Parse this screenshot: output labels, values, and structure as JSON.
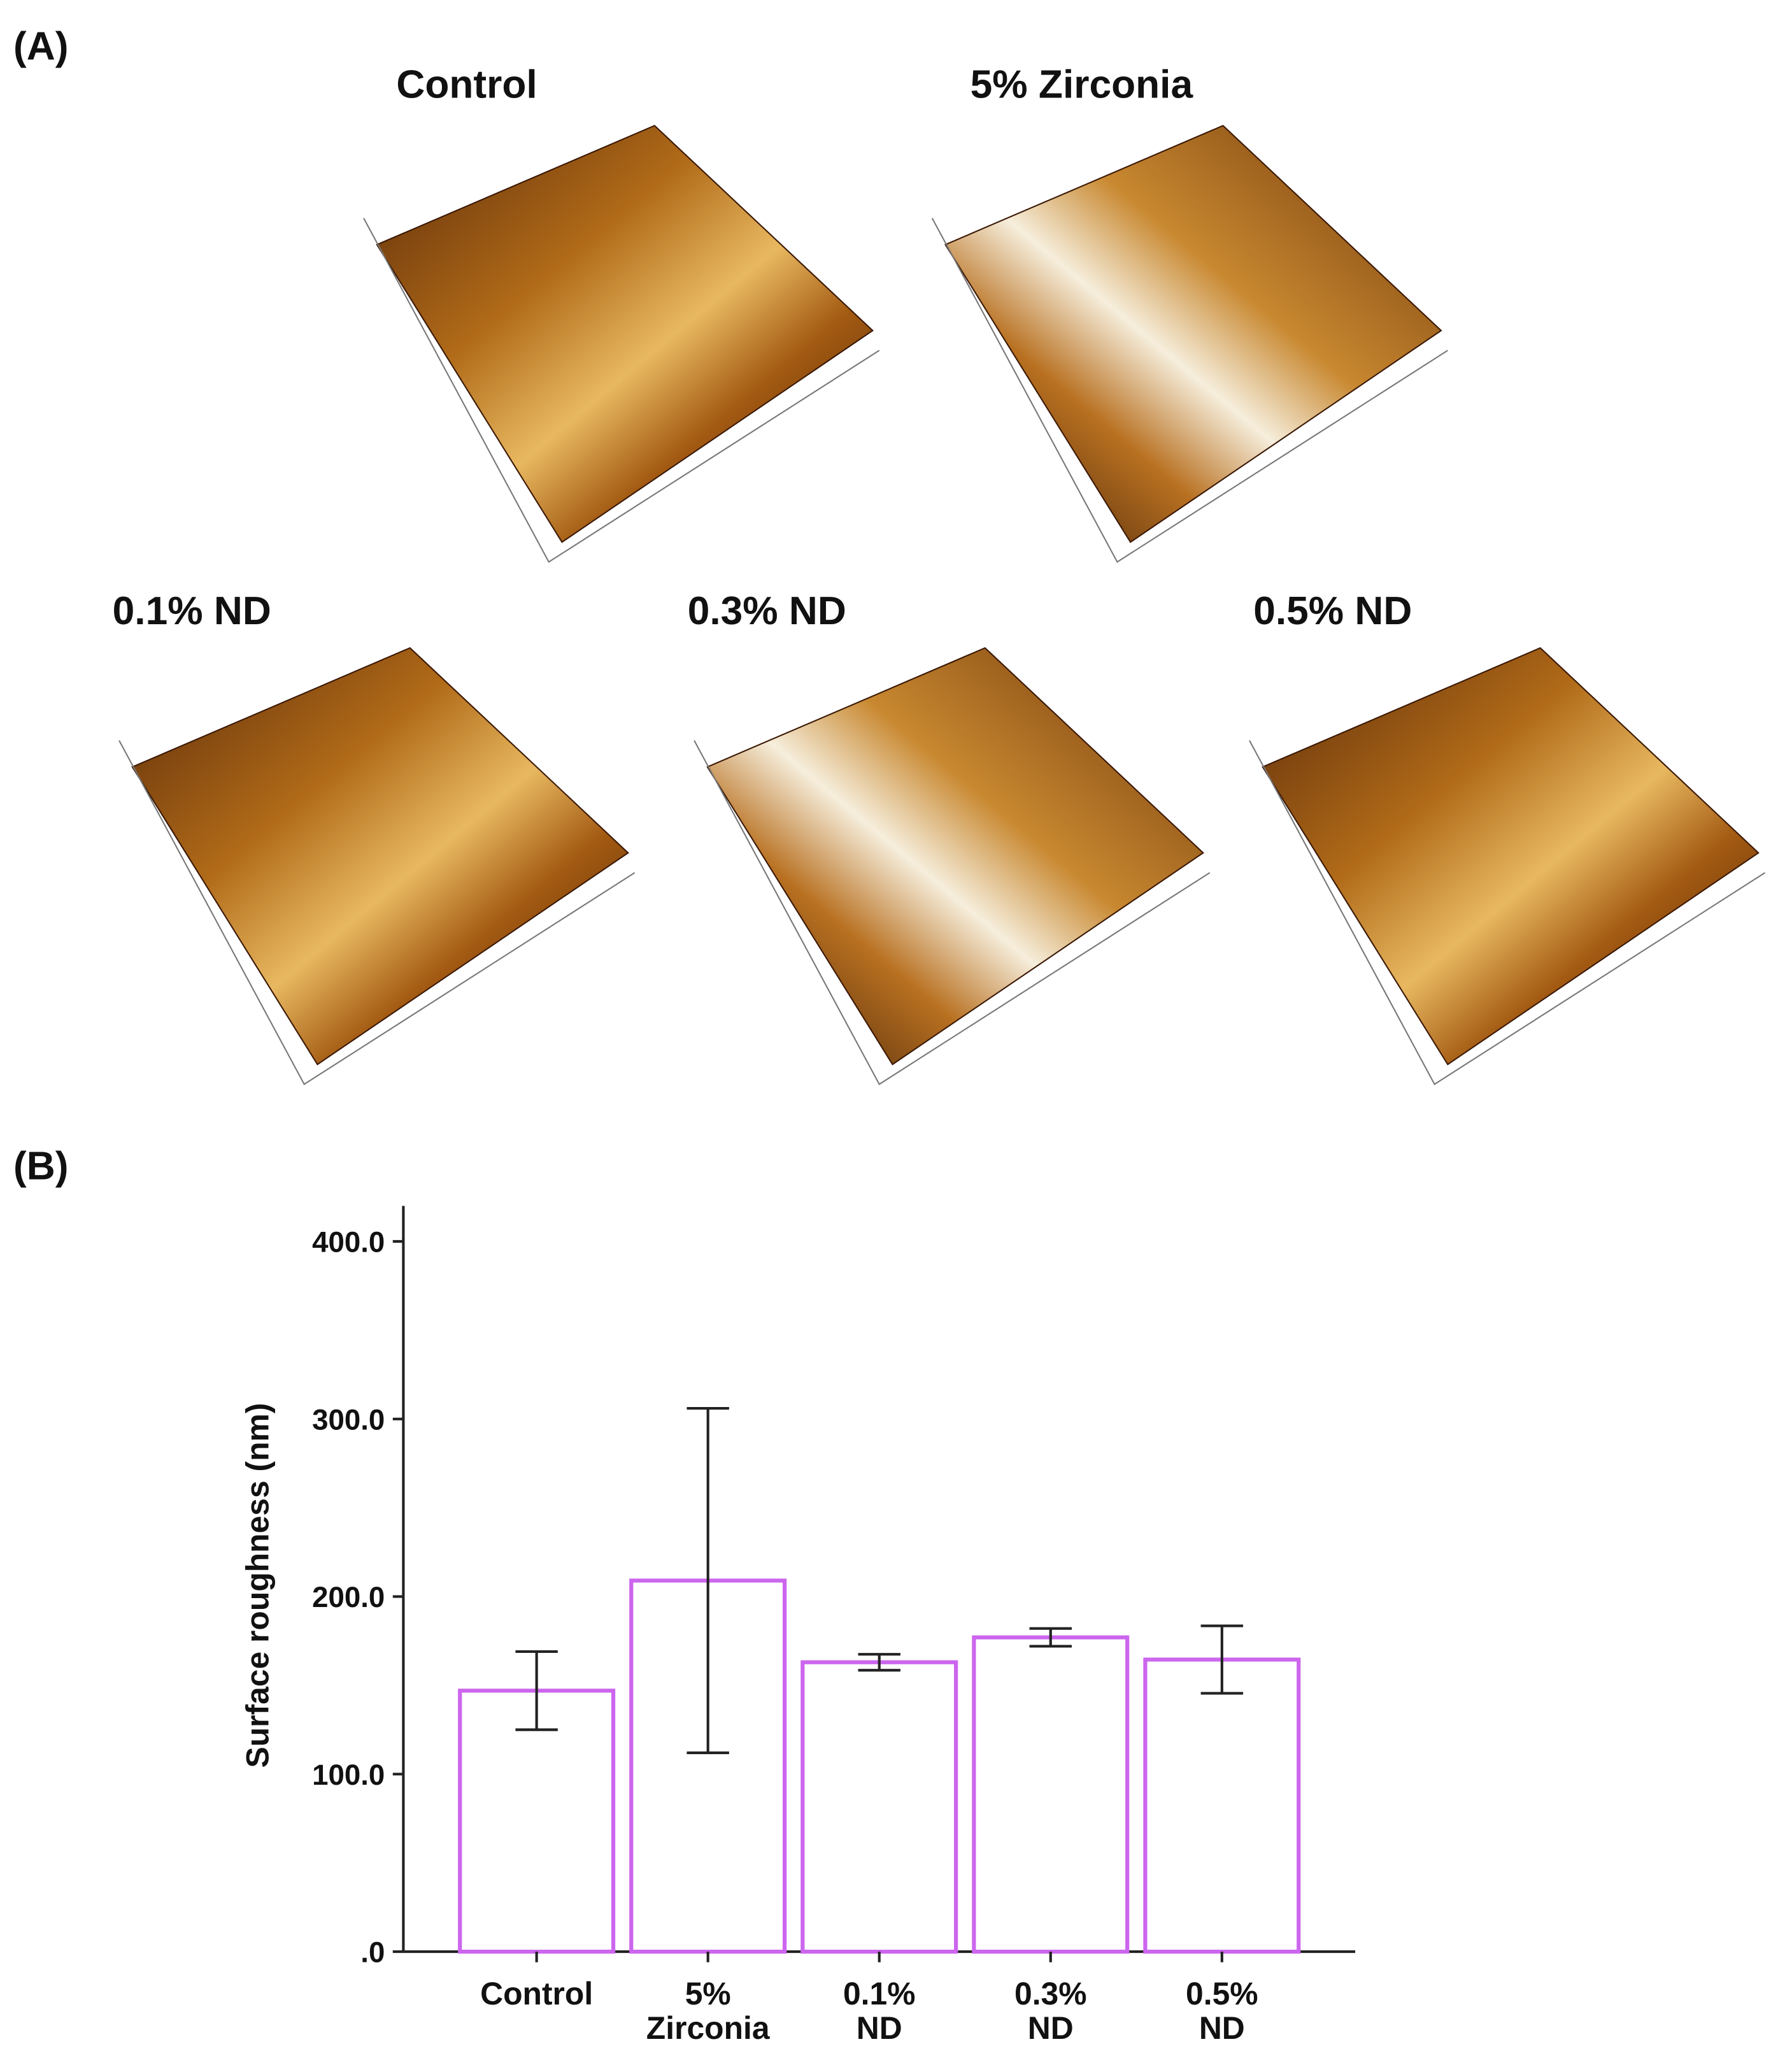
{
  "panel_a": {
    "label": "(A)",
    "images": [
      {
        "title": "Control"
      },
      {
        "title": "5% Zirconia"
      },
      {
        "title": "0.1% ND"
      },
      {
        "title": "0.3% ND"
      },
      {
        "title": "0.5% ND"
      }
    ]
  },
  "panel_b": {
    "label": "(B)"
  },
  "chart_data": {
    "type": "bar",
    "y_label": "Surface roughness (nm)",
    "categories": [
      "Control",
      "5% Zirconia",
      "0.1% ND",
      "0.3% ND",
      "0.5% ND"
    ],
    "values": [
      147,
      209,
      163,
      177,
      164.5
    ],
    "errors": [
      22,
      97,
      4.5,
      5,
      19
    ],
    "color": "#cc66ee",
    "error_color": "#222222",
    "ylim": [
      0,
      420
    ],
    "yticks": [
      {
        "value": 0,
        "label": ".0"
      },
      {
        "value": 100,
        "label": "100.0"
      },
      {
        "value": 200,
        "label": "200.0"
      },
      {
        "value": 300,
        "label": "300.0"
      },
      {
        "value": 400,
        "label": "400.0"
      }
    ],
    "grid": false
  }
}
